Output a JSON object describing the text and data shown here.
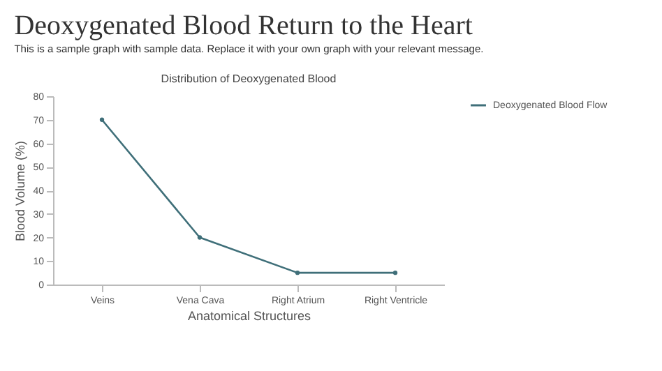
{
  "chart_data": {
    "type": "line",
    "title": "Deoxygenated Blood Return to the Heart",
    "subtitle": "This is a sample graph with sample data. Replace it with your own graph with your relevant message.",
    "annotations": [
      "Distribution of Deoxygenated Blood"
    ],
    "xlabel": "Anatomical Structures",
    "ylabel": "Blood Volume (%)",
    "categories": [
      "Veins",
      "Vena Cava",
      "Right Atrium",
      "Right Ventricle"
    ],
    "series": [
      {
        "name": "Deoxygenated Blood Flow",
        "color": "#3f6f79",
        "values": [
          70,
          20,
          5,
          5
        ]
      }
    ],
    "ylim": [
      0,
      80
    ],
    "yticks": [
      0,
      10,
      20,
      30,
      40,
      50,
      60,
      70,
      80
    ],
    "grid": false,
    "legend": "right",
    "marker": "circle",
    "line_style": "solid"
  }
}
